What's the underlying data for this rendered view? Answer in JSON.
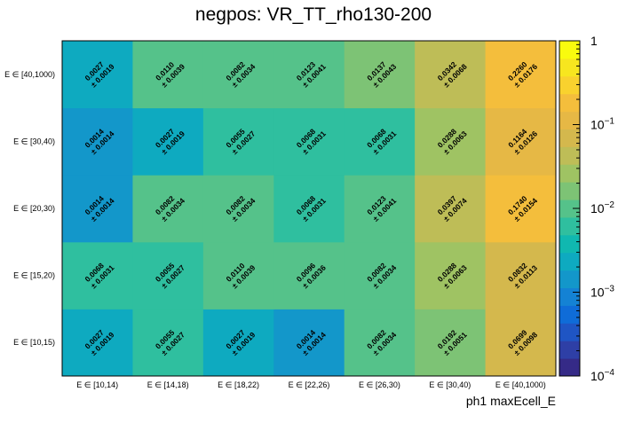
{
  "chart_data": {
    "type": "heatmap",
    "title": "negpos: VR_TT_rho130-200",
    "xlabel": "ph1 maxEcell_E",
    "ylabel": "",
    "x_categories": [
      "E ∈ [10,14)",
      "E ∈ [14,18)",
      "E ∈ [18,22)",
      "E ∈ [22,26)",
      "E ∈ [26,30)",
      "E ∈ [30,40)",
      "E ∈ [40,1000)"
    ],
    "y_categories": [
      "E ∈ [10,15)",
      "E ∈ [15,20)",
      "E ∈ [20,30)",
      "E ∈ [30,40)",
      "E ∈ [40,1000)"
    ],
    "z_scale": "log",
    "z_range": [
      0.0001,
      1
    ],
    "colorbar_ticks": [
      {
        "value": 0.0001,
        "label": "10^-4"
      },
      {
        "value": 0.001,
        "label": "10^-3"
      },
      {
        "value": 0.01,
        "label": "10^-2"
      },
      {
        "value": 0.1,
        "label": "10^-1"
      },
      {
        "value": 1,
        "label": "1"
      }
    ],
    "values": [
      [
        "0.0027",
        "0.0055",
        "0.0027",
        "0.0014",
        "0.0082",
        "0.0192",
        "0.0699"
      ],
      [
        "0.0068",
        "0.0055",
        "0.0110",
        "0.0096",
        "0.0082",
        "0.0288",
        "0.0832"
      ],
      [
        "0.0014",
        "0.0082",
        "0.0082",
        "0.0068",
        "0.0123",
        "0.0397",
        "0.1740"
      ],
      [
        "0.0014",
        "0.0027",
        "0.0055",
        "0.0068",
        "0.0068",
        "0.0288",
        "0.1164"
      ],
      [
        "0.0027",
        "0.0110",
        "0.0082",
        "0.0123",
        "0.0137",
        "0.0342",
        "0.2260"
      ]
    ],
    "errors": [
      [
        "0.0019",
        "0.0027",
        "0.0019",
        "0.0014",
        "0.0034",
        "0.0051",
        "0.0098"
      ],
      [
        "0.0031",
        "0.0027",
        "0.0039",
        "0.0036",
        "0.0034",
        "0.0063",
        "0.0113"
      ],
      [
        "0.0014",
        "0.0034",
        "0.0034",
        "0.0031",
        "0.0041",
        "0.0074",
        "0.0154"
      ],
      [
        "0.0014",
        "0.0019",
        "0.0027",
        "0.0031",
        "0.0031",
        "0.0063",
        "0.0126"
      ],
      [
        "0.0019",
        "0.0039",
        "0.0034",
        "0.0041",
        "0.0043",
        "0.0068",
        "0.0176"
      ]
    ],
    "error_prefix": "± ",
    "palette": [
      "#352a87",
      "#2e3fa6",
      "#1f55c4",
      "#0f6cd8",
      "#1482d4",
      "#1397ca",
      "#0eaac0",
      "#10b8b0",
      "#2fbf9f",
      "#55c28a",
      "#7dc375",
      "#9fc363",
      "#bebd57",
      "#d4b84d",
      "#e6b845",
      "#f4be3c",
      "#f9d22e",
      "#f7e61f",
      "#f9fb0e"
    ]
  }
}
